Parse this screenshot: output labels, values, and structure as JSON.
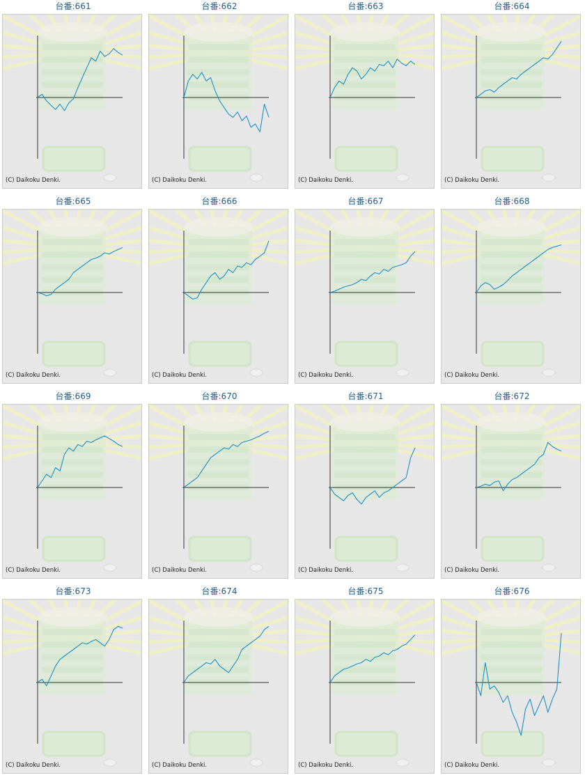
{
  "colors": {
    "line": "#1d8fc4",
    "axis": "#333333",
    "title": "#1f5f8f"
  },
  "chart_data": [
    {
      "type": "line",
      "title": "台番:661",
      "copyright": "(C) Daikoku Denki.",
      "y": [
        0,
        5,
        -5,
        -12,
        -18,
        -10,
        -20,
        -8,
        -2,
        15,
        30,
        45,
        60,
        55,
        70,
        62,
        66,
        74,
        68,
        64
      ]
    },
    {
      "type": "line",
      "title": "台番:662",
      "copyright": "(C) Daikoku Denki.",
      "y": [
        0,
        25,
        35,
        28,
        38,
        25,
        30,
        10,
        -5,
        -15,
        -25,
        -30,
        -22,
        -35,
        -28,
        -45,
        -40,
        -52,
        -10,
        -30
      ]
    },
    {
      "type": "line",
      "title": "台番:663",
      "copyright": "(C) Daikoku Denki.",
      "y": [
        0,
        15,
        25,
        20,
        35,
        45,
        40,
        28,
        35,
        45,
        40,
        50,
        48,
        55,
        45,
        58,
        52,
        48,
        55,
        50
      ]
    },
    {
      "type": "line",
      "title": "台番:664",
      "copyright": "(C) Daikoku Denki.",
      "y": [
        0,
        5,
        10,
        12,
        8,
        15,
        20,
        25,
        30,
        28,
        35,
        40,
        45,
        50,
        55,
        60,
        58,
        65,
        75,
        85
      ]
    },
    {
      "type": "line",
      "title": "台番:665",
      "copyright": "(C) Daikoku Denki.",
      "y": [
        0,
        -2,
        -5,
        -3,
        5,
        10,
        15,
        20,
        30,
        35,
        40,
        45,
        50,
        52,
        55,
        60,
        58,
        62,
        65,
        68
      ]
    },
    {
      "type": "line",
      "title": "台番:666",
      "copyright": "(C) Daikoku Denki.",
      "y": [
        0,
        -5,
        -10,
        -8,
        5,
        15,
        25,
        30,
        20,
        25,
        35,
        30,
        40,
        38,
        45,
        42,
        50,
        55,
        60,
        78
      ]
    },
    {
      "type": "line",
      "title": "台番:667",
      "copyright": "(C) Daikoku Denki.",
      "y": [
        0,
        2,
        5,
        8,
        10,
        12,
        15,
        20,
        18,
        25,
        30,
        28,
        35,
        32,
        38,
        40,
        42,
        45,
        55,
        62
      ]
    },
    {
      "type": "line",
      "title": "台番:668",
      "copyright": "(C) Daikoku Denki.",
      "y": [
        0,
        10,
        15,
        12,
        5,
        8,
        12,
        18,
        25,
        30,
        35,
        40,
        45,
        50,
        55,
        60,
        65,
        68,
        70,
        72
      ]
    },
    {
      "type": "line",
      "title": "台番:669",
      "copyright": "(C) Daikoku Denki.",
      "y": [
        0,
        10,
        20,
        15,
        30,
        25,
        50,
        60,
        55,
        65,
        62,
        70,
        68,
        72,
        75,
        78,
        74,
        70,
        65,
        62
      ]
    },
    {
      "type": "line",
      "title": "台番:670",
      "copyright": "(C) Daikoku Denki.",
      "y": [
        0,
        5,
        10,
        15,
        25,
        35,
        45,
        50,
        55,
        60,
        58,
        65,
        62,
        68,
        70,
        72,
        75,
        78,
        82,
        85
      ]
    },
    {
      "type": "line",
      "title": "台番:671",
      "copyright": "(C) Daikoku Denki.",
      "y": [
        0,
        -10,
        -15,
        -20,
        -12,
        -8,
        -18,
        -25,
        -15,
        -10,
        -5,
        -15,
        -8,
        -5,
        0,
        5,
        10,
        15,
        45,
        60
      ]
    },
    {
      "type": "line",
      "title": "台番:672",
      "copyright": "(C) Daikoku Denki.",
      "y": [
        0,
        2,
        5,
        3,
        8,
        10,
        -5,
        5,
        12,
        15,
        20,
        25,
        30,
        35,
        45,
        50,
        68,
        62,
        58,
        55
      ]
    },
    {
      "type": "line",
      "title": "台番:673",
      "copyright": "(C) Daikoku Denki.",
      "y": [
        0,
        5,
        -5,
        10,
        25,
        35,
        40,
        45,
        50,
        55,
        60,
        58,
        62,
        65,
        60,
        55,
        65,
        80,
        85,
        82
      ]
    },
    {
      "type": "line",
      "title": "台番:674",
      "copyright": "(C) Daikoku Denki.",
      "y": [
        0,
        10,
        15,
        20,
        25,
        30,
        28,
        35,
        25,
        20,
        15,
        25,
        35,
        50,
        55,
        60,
        65,
        70,
        80,
        85
      ]
    },
    {
      "type": "line",
      "title": "台番:675",
      "copyright": "(C) Daikoku Denki.",
      "y": [
        0,
        10,
        15,
        20,
        22,
        25,
        28,
        30,
        35,
        32,
        38,
        40,
        45,
        42,
        48,
        50,
        55,
        58,
        65,
        72
      ]
    },
    {
      "type": "line",
      "title": "台番:676",
      "copyright": "(C) Daikoku Denki.",
      "y": [
        0,
        -20,
        30,
        -10,
        -5,
        -15,
        -30,
        -20,
        -45,
        -60,
        -80,
        -40,
        -25,
        -50,
        -35,
        -20,
        -45,
        -25,
        -10,
        75
      ]
    }
  ]
}
